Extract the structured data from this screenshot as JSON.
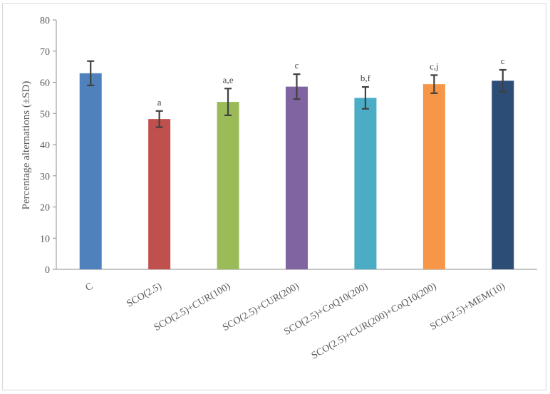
{
  "chart_data": {
    "type": "bar",
    "title": "",
    "xlabel": "",
    "ylabel": "Percentage alternations (±SD)",
    "ylim": [
      0,
      80
    ],
    "yticks": [
      0,
      10,
      20,
      30,
      40,
      50,
      60,
      70,
      80
    ],
    "grid": false,
    "categories": [
      "C",
      "SCO(2.5)",
      "SCO(2.5)+CUR(100)",
      "SCO(2.5)+CUR(200)",
      "SCO(2.5)+CoQ10(200)",
      "SCO(2.5)+CUR(200)+CoQ10(200)",
      "SCO(2.5)+MEM(10)"
    ],
    "values": [
      62.9,
      48.2,
      53.7,
      58.6,
      55.0,
      59.4,
      60.5
    ],
    "errors": [
      3.9,
      2.6,
      4.3,
      4.0,
      3.5,
      2.9,
      3.5
    ],
    "significance": [
      "",
      "a",
      "a,e",
      "c",
      "b,f",
      "c,j",
      "c"
    ],
    "colors": [
      "#4f81bd",
      "#c0504d",
      "#9bbb59",
      "#8064a2",
      "#4bacc6",
      "#f79646",
      "#2c4d75"
    ]
  }
}
